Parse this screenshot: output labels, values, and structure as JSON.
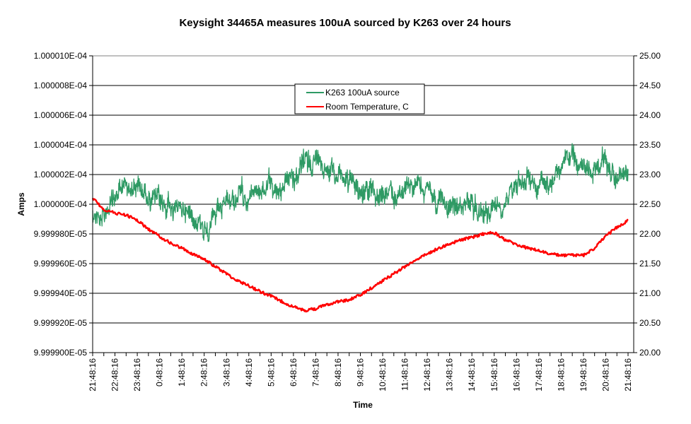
{
  "chart_data": {
    "type": "line",
    "title": "Keysight 34465A measures 100uA sourced by K263 over 24 hours",
    "xlabel": "Time",
    "ylabel": "Amps",
    "y2label": "",
    "x_tick_labels": [
      "21:48:16",
      "22:48:16",
      "23:48:16",
      "0:48:16",
      "1:48:16",
      "2:48:16",
      "3:48:16",
      "4:48:16",
      "5:48:16",
      "6:48:16",
      "7:48:16",
      "8:48:16",
      "9:48:16",
      "10:48:16",
      "11:48:16",
      "12:48:16",
      "13:48:16",
      "14:48:16",
      "15:48:16",
      "16:48:16",
      "17:48:16",
      "18:48:16",
      "19:48:16",
      "20:48:16",
      "21:48:16"
    ],
    "x_unit": "hours since 21:48:16",
    "xlim": [
      0,
      24.25
    ],
    "ylim": [
      9.9999e-05,
      0.000100001
    ],
    "y_tick_labels": [
      "9.999900E-05",
      "9.999920E-05",
      "9.999940E-05",
      "9.999960E-05",
      "9.999980E-05",
      "1.000000E-04",
      "1.000002E-04",
      "1.000004E-04",
      "1.000006E-04",
      "1.000008E-04",
      "1.000010E-04"
    ],
    "y2lim": [
      20,
      25
    ],
    "y2_tick_labels": [
      "20.00",
      "20.50",
      "21.00",
      "21.50",
      "22.00",
      "22.50",
      "23.00",
      "23.50",
      "24.00",
      "24.50",
      "25.00"
    ],
    "grid": "horizontal",
    "legend_placement": "top-center",
    "series": [
      {
        "name": "K263 100uA source",
        "axis": "left",
        "color": "#2e9a64",
        "x_step_hours": 0.5,
        "values": [
          9.9999948e-05,
          9.9999924e-05,
          0.000100000043,
          0.000100000129,
          0.000100000114,
          0.000100000067,
          9.9999995e-05,
          9.9999995e-05,
          9.9999971e-05,
          9.9999948e-05,
          9.9999852e-05,
          9.99999e-05,
          9.9999995e-05,
          0.000100000043,
          0.000100000067,
          0.00010000009,
          0.000100000114,
          0.000100000114,
          0.000100000186,
          0.000100000257,
          0.000100000305,
          0.000100000281,
          0.00010000021,
          0.000100000138,
          0.0001000001,
          0.000100000081,
          0.000100000067,
          0.000100000043,
          0.000100000114,
          0.000100000114,
          0.00010000009,
          0.000100000019,
          9.9999971e-05,
          9.9999995e-05,
          0.000100000019,
          9.9999948e-05,
          9.9999971e-05,
          0.000100000067,
          0.000100000162,
          0.000100000186,
          0.000100000138,
          0.000100000162,
          0.000100000281,
          0.000100000305,
          0.000100000233,
          0.000100000257,
          0.000100000233,
          0.000100000186,
          0.000100000138
        ]
      },
      {
        "name": "Room Temperature, C",
        "axis": "right",
        "color": "#ff0000",
        "x_step_hours": 0.5,
        "values": [
          22.61,
          22.41,
          22.35,
          22.32,
          22.23,
          22.08,
          21.96,
          21.84,
          21.76,
          21.66,
          21.57,
          21.45,
          21.33,
          21.21,
          21.13,
          21.03,
          20.95,
          20.86,
          20.77,
          20.71,
          20.74,
          20.81,
          20.86,
          20.89,
          20.97,
          21.09,
          21.21,
          21.33,
          21.45,
          21.57,
          21.66,
          21.76,
          21.83,
          21.9,
          21.94,
          22.0,
          22.02,
          21.9,
          21.82,
          21.76,
          21.72,
          21.66,
          21.64,
          21.64,
          21.64,
          21.76,
          21.96,
          22.11,
          22.23
        ]
      }
    ]
  }
}
